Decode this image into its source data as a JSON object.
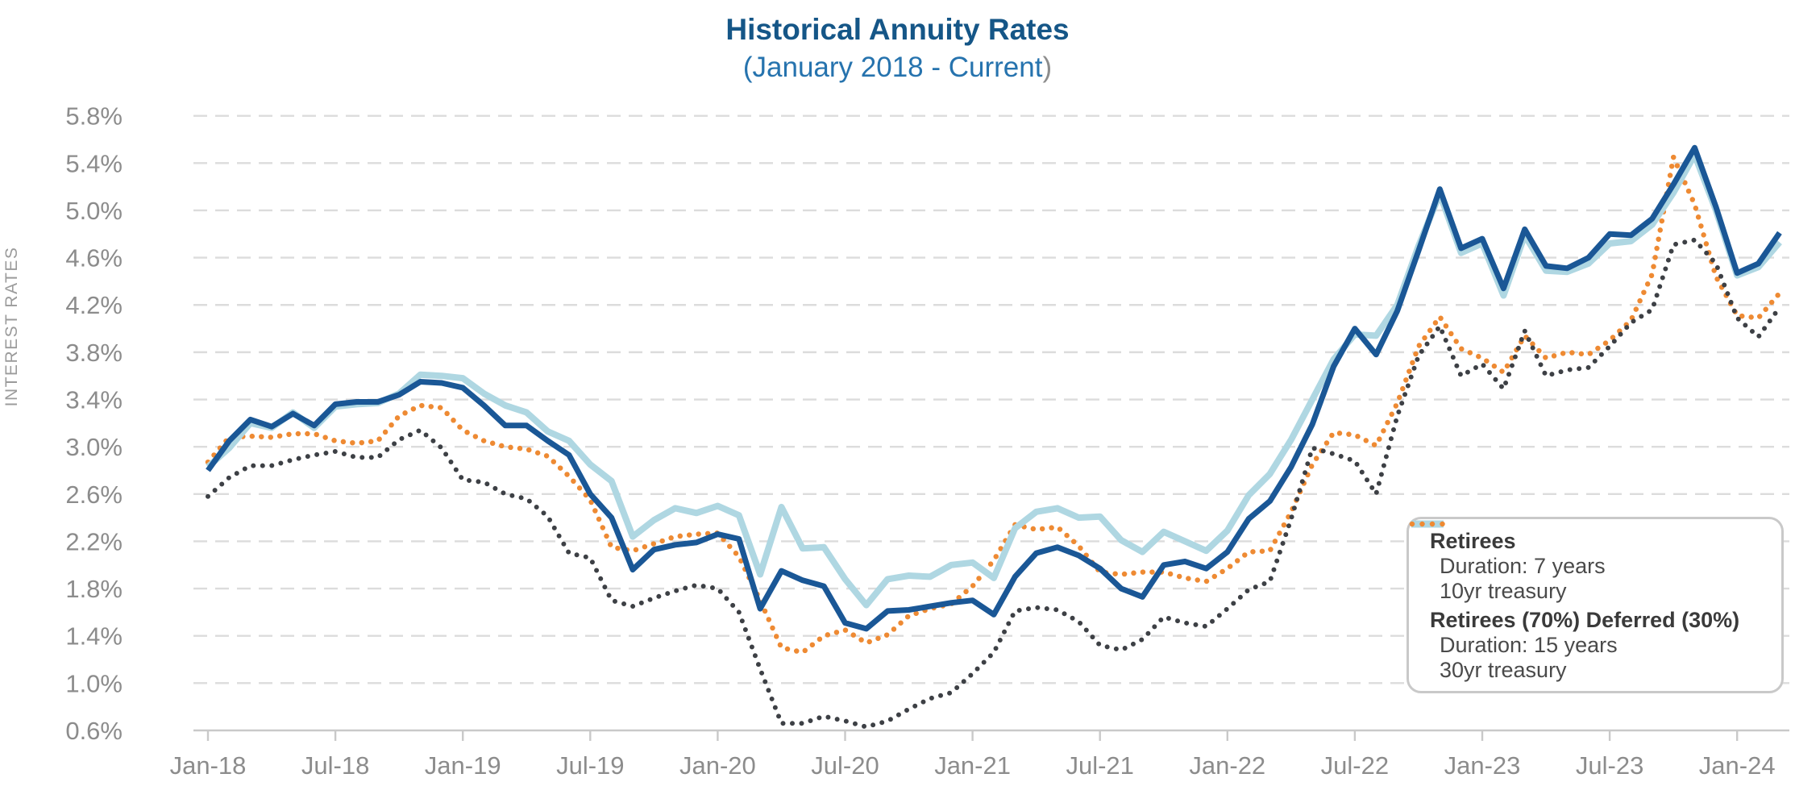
{
  "title": "Historical Annuity Rates",
  "subtitle": "(January 2018 - Current",
  "subtitle_close_paren": ")",
  "y_axis_label": "INTEREST RATES",
  "legend": {
    "group1_header": "Retirees",
    "group1_items": [
      {
        "label": "Duration: 7 years",
        "swatch": "solid",
        "color": "#1A5796"
      },
      {
        "label": "10yr treasury",
        "swatch": "dotted",
        "color": "#3D4045"
      }
    ],
    "group2_header": "Retirees (70%) Deferred (30%)",
    "group2_items": [
      {
        "label": "Duration: 15 years",
        "swatch": "solid",
        "color": "#AFD7E2"
      },
      {
        "label": "30yr treasury",
        "swatch": "dotted",
        "color": "#EE8A33"
      }
    ]
  },
  "chart_data": {
    "type": "line",
    "title": "Historical Annuity Rates (January 2018 - Current)",
    "ylabel": "INTEREST RATES",
    "xlabel": "",
    "grid": true,
    "legend_position": "inside-right-bottom",
    "ylim": [
      0.6,
      5.8
    ],
    "y_ticks": [
      0.6,
      1.0,
      1.4,
      1.8,
      2.2,
      2.6,
      3.0,
      3.4,
      3.8,
      4.2,
      4.6,
      5.0,
      5.4,
      5.8
    ],
    "x_tick_labels": [
      "Jan-18",
      "Jul-18",
      "Jan-19",
      "Jul-19",
      "Jan-20",
      "Jul-20",
      "Jan-21",
      "Jul-21",
      "Jan-22",
      "Jul-22",
      "Jan-23",
      "Jul-23",
      "Jan-24"
    ],
    "x": [
      "Jan-18",
      "Feb-18",
      "Mar-18",
      "Apr-18",
      "May-18",
      "Jun-18",
      "Jul-18",
      "Aug-18",
      "Sep-18",
      "Oct-18",
      "Nov-18",
      "Dec-18",
      "Jan-19",
      "Feb-19",
      "Mar-19",
      "Apr-19",
      "May-19",
      "Jun-19",
      "Jul-19",
      "Aug-19",
      "Sep-19",
      "Oct-19",
      "Nov-19",
      "Dec-19",
      "Jan-20",
      "Feb-20",
      "Mar-20",
      "Apr-20",
      "May-20",
      "Jun-20",
      "Jul-20",
      "Aug-20",
      "Sep-20",
      "Oct-20",
      "Nov-20",
      "Dec-20",
      "Jan-21",
      "Feb-21",
      "Mar-21",
      "Apr-21",
      "May-21",
      "Jun-21",
      "Jul-21",
      "Aug-21",
      "Sep-21",
      "Oct-21",
      "Nov-21",
      "Dec-21",
      "Jan-22",
      "Feb-22",
      "Mar-22",
      "Apr-22",
      "May-22",
      "Jun-22",
      "Jul-22",
      "Aug-22",
      "Sep-22",
      "Oct-22",
      "Nov-22",
      "Dec-22",
      "Jan-23",
      "Feb-23",
      "Mar-23",
      "Apr-23",
      "May-23",
      "Jun-23",
      "Jul-23",
      "Aug-23",
      "Sep-23",
      "Oct-23",
      "Nov-23",
      "Dec-23",
      "Jan-24",
      "Feb-24",
      "Mar-24"
    ],
    "series": [
      {
        "name": "Retirees — Duration: 7 years",
        "group": "Retirees",
        "style": "solid",
        "color": "#1A5796",
        "width": 7,
        "values": [
          2.8,
          3.05,
          3.23,
          3.17,
          3.28,
          3.18,
          3.36,
          3.38,
          3.38,
          3.44,
          3.55,
          3.54,
          3.5,
          3.35,
          3.18,
          3.18,
          3.05,
          2.93,
          2.6,
          2.4,
          1.96,
          2.13,
          2.17,
          2.19,
          2.26,
          2.22,
          1.63,
          1.95,
          1.87,
          1.82,
          1.51,
          1.46,
          1.61,
          1.62,
          1.65,
          1.68,
          1.7,
          1.58,
          1.9,
          2.1,
          2.15,
          2.08,
          1.97,
          1.8,
          1.73,
          2.0,
          2.03,
          1.97,
          2.11,
          2.39,
          2.54,
          2.83,
          3.19,
          3.68,
          4.0,
          3.78,
          4.15,
          4.66,
          5.18,
          4.68,
          4.76,
          4.34,
          4.84,
          4.53,
          4.51,
          4.6,
          4.8,
          4.79,
          4.93,
          5.22,
          5.53,
          5.03,
          4.47,
          4.55,
          4.81
        ]
      },
      {
        "name": "Retirees — 10yr treasury",
        "group": "Retirees",
        "style": "dotted",
        "color": "#3D4045",
        "width": 6,
        "values": [
          2.58,
          2.74,
          2.84,
          2.84,
          2.89,
          2.93,
          2.96,
          2.91,
          2.91,
          3.06,
          3.14,
          2.99,
          2.72,
          2.7,
          2.6,
          2.56,
          2.41,
          2.1,
          2.06,
          1.7,
          1.65,
          1.72,
          1.78,
          1.83,
          1.8,
          1.6,
          1.12,
          0.66,
          0.66,
          0.72,
          0.68,
          0.63,
          0.68,
          0.78,
          0.87,
          0.92,
          1.08,
          1.26,
          1.61,
          1.64,
          1.62,
          1.52,
          1.32,
          1.28,
          1.37,
          1.56,
          1.51,
          1.48,
          1.63,
          1.79,
          1.86,
          2.39,
          2.99,
          2.94,
          2.88,
          2.6,
          3.26,
          3.77,
          4.02,
          3.6,
          3.7,
          3.49,
          3.98,
          3.6,
          3.65,
          3.67,
          3.85,
          4.05,
          4.16,
          4.71,
          4.75,
          4.55,
          4.09,
          3.93,
          4.18
        ]
      },
      {
        "name": "Retirees (70%) Deferred (30%) — Duration: 15 years",
        "group": "Retirees (70%) Deferred (30%)",
        "style": "solid",
        "color": "#AFD7E2",
        "width": 8,
        "values": [
          2.83,
          2.99,
          3.2,
          3.16,
          3.29,
          3.16,
          3.34,
          3.36,
          3.37,
          3.45,
          3.61,
          3.6,
          3.58,
          3.45,
          3.35,
          3.29,
          3.13,
          3.05,
          2.85,
          2.71,
          2.24,
          2.38,
          2.48,
          2.44,
          2.5,
          2.42,
          1.92,
          2.49,
          2.14,
          2.15,
          1.88,
          1.66,
          1.88,
          1.91,
          1.9,
          2.0,
          2.02,
          1.89,
          2.31,
          2.45,
          2.48,
          2.4,
          2.41,
          2.21,
          2.11,
          2.28,
          2.2,
          2.12,
          2.29,
          2.59,
          2.77,
          3.06,
          3.4,
          3.74,
          3.95,
          3.94,
          4.2,
          4.7,
          5.14,
          4.64,
          4.72,
          4.28,
          4.79,
          4.49,
          4.48,
          4.55,
          4.72,
          4.74,
          4.88,
          5.15,
          5.47,
          5.0,
          4.45,
          4.52,
          4.73
        ]
      },
      {
        "name": "Retirees (70%) Deferred (30%) — 30yr treasury",
        "group": "Retirees (70%) Deferred (30%)",
        "style": "dotted",
        "color": "#EE8A33",
        "width": 6.5,
        "values": [
          2.87,
          3.08,
          3.09,
          3.08,
          3.11,
          3.11,
          3.05,
          3.03,
          3.05,
          3.26,
          3.35,
          3.33,
          3.14,
          3.05,
          3.0,
          2.98,
          2.92,
          2.75,
          2.55,
          2.15,
          2.12,
          2.18,
          2.24,
          2.26,
          2.27,
          2.07,
          1.7,
          1.3,
          1.26,
          1.4,
          1.45,
          1.34,
          1.41,
          1.57,
          1.63,
          1.67,
          1.82,
          2.04,
          2.34,
          2.3,
          2.32,
          2.16,
          1.94,
          1.92,
          1.94,
          1.94,
          1.89,
          1.86,
          1.97,
          2.11,
          2.12,
          2.45,
          2.85,
          3.12,
          3.1,
          3.01,
          3.37,
          3.85,
          4.1,
          3.83,
          3.75,
          3.63,
          3.94,
          3.75,
          3.8,
          3.78,
          3.9,
          4.07,
          4.46,
          5.45,
          5.05,
          4.44,
          4.11,
          4.09,
          4.3
        ]
      }
    ]
  },
  "style": {
    "title_color": "#155687",
    "subtitle_color": "#2673AE",
    "axis_label_color": "#8C8C8C",
    "gridline_color": "#DCDCDC",
    "axis_line_color": "#C9C9C9",
    "legend_border_color": "#C9C9C9"
  }
}
